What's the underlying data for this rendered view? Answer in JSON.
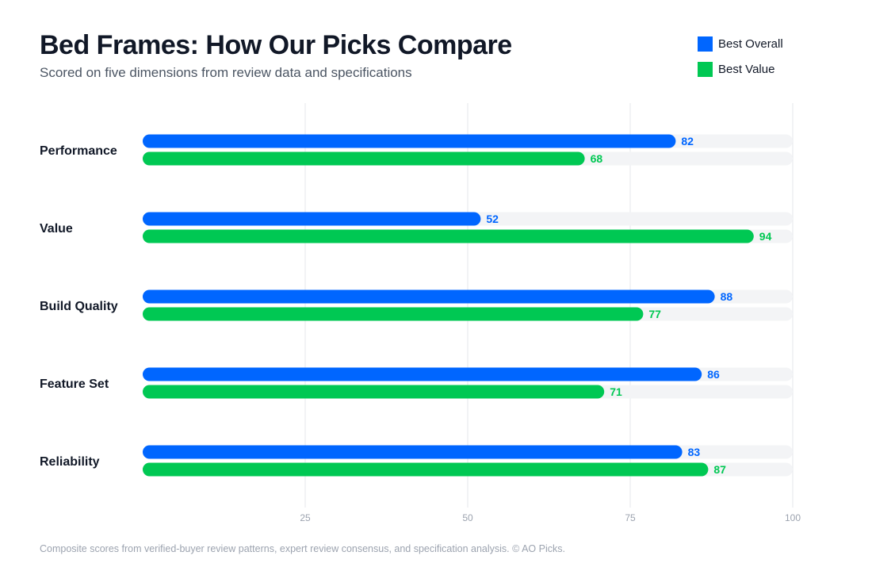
{
  "chart_data": {
    "type": "bar",
    "orientation": "horizontal",
    "title": "Bed Frames: How Our Picks Compare",
    "subtitle": "Scored on five dimensions from review data and specifications",
    "categories": [
      "Performance",
      "Value",
      "Build Quality",
      "Feature Set",
      "Reliability"
    ],
    "series": [
      {
        "name": "Best Overall",
        "color": "#0066ff",
        "values": [
          82,
          52,
          88,
          86,
          83
        ]
      },
      {
        "name": "Best Value",
        "color": "#00c853",
        "values": [
          68,
          94,
          77,
          71,
          87
        ]
      }
    ],
    "xlim": [
      0,
      100
    ],
    "xticks": [
      25,
      50,
      75,
      100
    ],
    "grid": true,
    "track_color": "#f3f4f6",
    "legend_position": "top-right",
    "footnote": "Composite scores from verified-buyer review patterns, expert review consensus, and specification analysis. © AO Picks."
  }
}
